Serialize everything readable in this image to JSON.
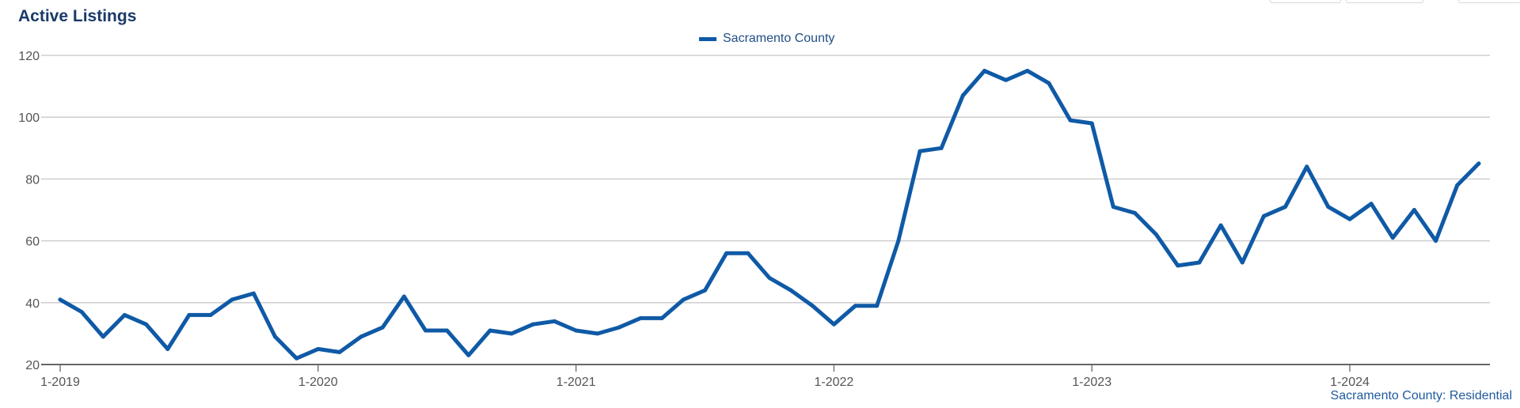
{
  "header": {
    "title": "Active Listings"
  },
  "footer": {
    "source": "Sacramento County: Residential"
  },
  "colors": {
    "series": "#0f5aa6",
    "grid": "#c8c8c8",
    "axis": "#666666",
    "title": "#1a3a68"
  },
  "chart_data": {
    "type": "line",
    "title": "Active Listings",
    "xlabel": "",
    "ylabel": "",
    "ylim": [
      20,
      120
    ],
    "yticks": [
      20,
      40,
      60,
      80,
      100,
      120
    ],
    "xticks": [
      "1-2019",
      "1-2020",
      "1-2021",
      "1-2022",
      "1-2023",
      "1-2024"
    ],
    "grid": true,
    "legend_position": "top-center",
    "x": [
      "1-2019",
      "2-2019",
      "3-2019",
      "4-2019",
      "5-2019",
      "6-2019",
      "7-2019",
      "8-2019",
      "9-2019",
      "10-2019",
      "11-2019",
      "12-2019",
      "1-2020",
      "2-2020",
      "3-2020",
      "4-2020",
      "5-2020",
      "6-2020",
      "7-2020",
      "8-2020",
      "9-2020",
      "10-2020",
      "11-2020",
      "12-2020",
      "1-2021",
      "2-2021",
      "3-2021",
      "4-2021",
      "5-2021",
      "6-2021",
      "7-2021",
      "8-2021",
      "9-2021",
      "10-2021",
      "11-2021",
      "12-2021",
      "1-2022",
      "2-2022",
      "3-2022",
      "4-2022",
      "5-2022",
      "6-2022",
      "7-2022",
      "8-2022",
      "9-2022",
      "10-2022",
      "11-2022",
      "12-2022",
      "1-2023",
      "2-2023",
      "3-2023",
      "4-2023",
      "5-2023",
      "6-2023",
      "7-2023",
      "8-2023",
      "9-2023",
      "10-2023",
      "11-2023",
      "12-2023",
      "1-2024",
      "2-2024",
      "3-2024",
      "4-2024",
      "5-2024",
      "6-2024",
      "7-2024"
    ],
    "series": [
      {
        "name": "Sacramento County",
        "values": [
          41,
          37,
          29,
          36,
          33,
          25,
          36,
          36,
          41,
          43,
          29,
          22,
          25,
          24,
          29,
          32,
          42,
          31,
          31,
          23,
          31,
          30,
          33,
          34,
          31,
          30,
          32,
          35,
          35,
          41,
          44,
          56,
          56,
          48,
          44,
          39,
          33,
          39,
          39,
          60,
          89,
          90,
          107,
          115,
          112,
          115,
          111,
          99,
          98,
          71,
          69,
          62,
          52,
          53,
          65,
          53,
          68,
          71,
          84,
          71,
          67,
          72,
          61,
          70,
          60,
          78,
          85
        ]
      }
    ]
  }
}
